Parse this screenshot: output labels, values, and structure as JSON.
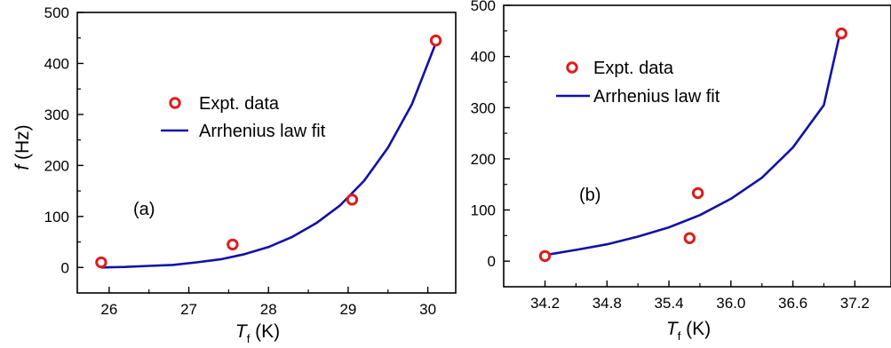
{
  "chart_data": [
    {
      "type": "scatter",
      "panel_label": "(a)",
      "xlabel": {
        "symbol": "T",
        "subscript": "f",
        "unit": " (K)"
      },
      "ylabel": {
        "symbol": "f",
        "unit": " (Hz)"
      },
      "xlim": [
        25.6,
        30.35
      ],
      "ylim": [
        -50,
        500
      ],
      "xticks": [
        26,
        27,
        28,
        29,
        30
      ],
      "xtick_labels": [
        "26",
        "27",
        "28",
        "29",
        "30"
      ],
      "yticks": [
        0,
        100,
        200,
        300,
        400,
        500
      ],
      "ytick_labels": [
        "0",
        "100",
        "200",
        "300",
        "400",
        "500"
      ],
      "grid": false,
      "legend_position": "center-left",
      "series": [
        {
          "name": "Expt. data",
          "kind": "markers",
          "color": "#e01b1b",
          "points": [
            {
              "x": 25.9,
              "y": 10
            },
            {
              "x": 27.55,
              "y": 45
            },
            {
              "x": 29.05,
              "y": 133
            },
            {
              "x": 30.1,
              "y": 445
            }
          ]
        },
        {
          "name": "Arrhenius law fit",
          "kind": "line",
          "color": "#1111a8",
          "points": [
            {
              "x": 25.9,
              "y": 0
            },
            {
              "x": 26.2,
              "y": 1
            },
            {
              "x": 26.5,
              "y": 3
            },
            {
              "x": 26.8,
              "y": 5
            },
            {
              "x": 27.1,
              "y": 10
            },
            {
              "x": 27.4,
              "y": 16
            },
            {
              "x": 27.7,
              "y": 26
            },
            {
              "x": 28.0,
              "y": 40
            },
            {
              "x": 28.3,
              "y": 60
            },
            {
              "x": 28.6,
              "y": 87
            },
            {
              "x": 28.9,
              "y": 122
            },
            {
              "x": 29.2,
              "y": 170
            },
            {
              "x": 29.5,
              "y": 235
            },
            {
              "x": 29.8,
              "y": 320
            },
            {
              "x": 30.1,
              "y": 440
            }
          ]
        }
      ]
    },
    {
      "type": "scatter",
      "panel_label": "(b)",
      "xlabel": {
        "symbol": "T",
        "subscript": "f",
        "unit": " (K)"
      },
      "ylabel": null,
      "xlim": [
        33.8,
        37.55
      ],
      "ylim": [
        -50,
        500
      ],
      "xticks": [
        34.2,
        34.8,
        35.4,
        36.0,
        36.6,
        37.2
      ],
      "xtick_labels": [
        "34.2",
        "34.8",
        "35.4",
        "36.0",
        "36.6",
        "37.2"
      ],
      "yticks": [
        0,
        100,
        200,
        300,
        400,
        500
      ],
      "ytick_labels": [
        "0",
        "100",
        "200",
        "300",
        "400",
        "500"
      ],
      "grid": false,
      "legend_position": "top-left",
      "series": [
        {
          "name": "Expt. data",
          "kind": "markers",
          "color": "#e01b1b",
          "points": [
            {
              "x": 34.2,
              "y": 10
            },
            {
              "x": 35.6,
              "y": 45
            },
            {
              "x": 35.68,
              "y": 133
            },
            {
              "x": 37.07,
              "y": 445
            }
          ]
        },
        {
          "name": "Arrhenius law fit",
          "kind": "line",
          "color": "#1111a8",
          "points": [
            {
              "x": 34.2,
              "y": 12
            },
            {
              "x": 34.5,
              "y": 22
            },
            {
              "x": 34.8,
              "y": 33
            },
            {
              "x": 35.1,
              "y": 48
            },
            {
              "x": 35.4,
              "y": 66
            },
            {
              "x": 35.7,
              "y": 90
            },
            {
              "x": 36.0,
              "y": 122
            },
            {
              "x": 36.3,
              "y": 163
            },
            {
              "x": 36.6,
              "y": 222
            },
            {
              "x": 36.9,
              "y": 305
            },
            {
              "x": 37.05,
              "y": 440
            }
          ]
        }
      ]
    }
  ]
}
